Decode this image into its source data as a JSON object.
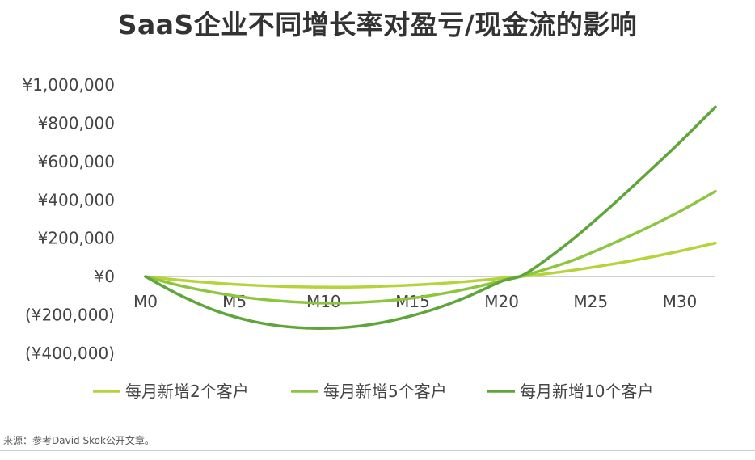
{
  "title": "SaaS企业不同增长率对盈亏/现金流的影响",
  "source": "来源：参考David Skok公开文章。",
  "colors": {
    "series_2": "#b5d43b",
    "series_5": "#8cc63f",
    "series_10": "#5ea63a",
    "axis": "#bfbfbf"
  },
  "chart_data": {
    "type": "line",
    "title": "SaaS企业不同增长率对盈亏/现金流的影响",
    "xlabel": "",
    "ylabel": "",
    "x_tick_labels": [
      "M0",
      "M5",
      "M10",
      "M15",
      "M20",
      "M25",
      "M30"
    ],
    "x_tick_values": [
      0,
      5,
      10,
      15,
      20,
      25,
      30
    ],
    "y_tick_labels": [
      "¥1,000,000",
      "¥800,000",
      "¥600,000",
      "¥400,000",
      "¥200,000",
      "¥0",
      "(¥200,000)",
      "(¥400,000)"
    ],
    "y_tick_values": [
      1000000,
      800000,
      600000,
      400000,
      200000,
      0,
      -200000,
      -400000
    ],
    "xlim": [
      0,
      32
    ],
    "ylim": [
      -400000,
      1000000
    ],
    "grid": false,
    "legend_position": "bottom",
    "x": [
      0,
      2,
      4,
      6,
      8,
      10,
      12,
      14,
      16,
      18,
      20,
      21,
      22,
      24,
      26,
      28,
      30,
      32
    ],
    "series": [
      {
        "name": "每月新增2个客户",
        "color_key": "series_2",
        "values": [
          0,
          -19000,
          -34000,
          -45000,
          -52000,
          -55000,
          -54000,
          -48000,
          -39000,
          -26000,
          -9000,
          0,
          9000,
          33000,
          62000,
          95000,
          133000,
          175000
        ]
      },
      {
        "name": "每月新增5个客户",
        "color_key": "series_5",
        "values": [
          0,
          -48000,
          -85000,
          -113000,
          -130000,
          -138000,
          -135000,
          -122000,
          -99000,
          -65000,
          -22000,
          0,
          25000,
          85000,
          163000,
          247000,
          340000,
          445000
        ]
      },
      {
        "name": "每月新增10个客户",
        "color_key": "series_10",
        "values": [
          0,
          -100000,
          -180000,
          -233000,
          -262000,
          -270000,
          -258000,
          -226000,
          -176000,
          -108000,
          -24000,
          0,
          55000,
          195000,
          355000,
          525000,
          700000,
          885000
        ]
      }
    ]
  }
}
